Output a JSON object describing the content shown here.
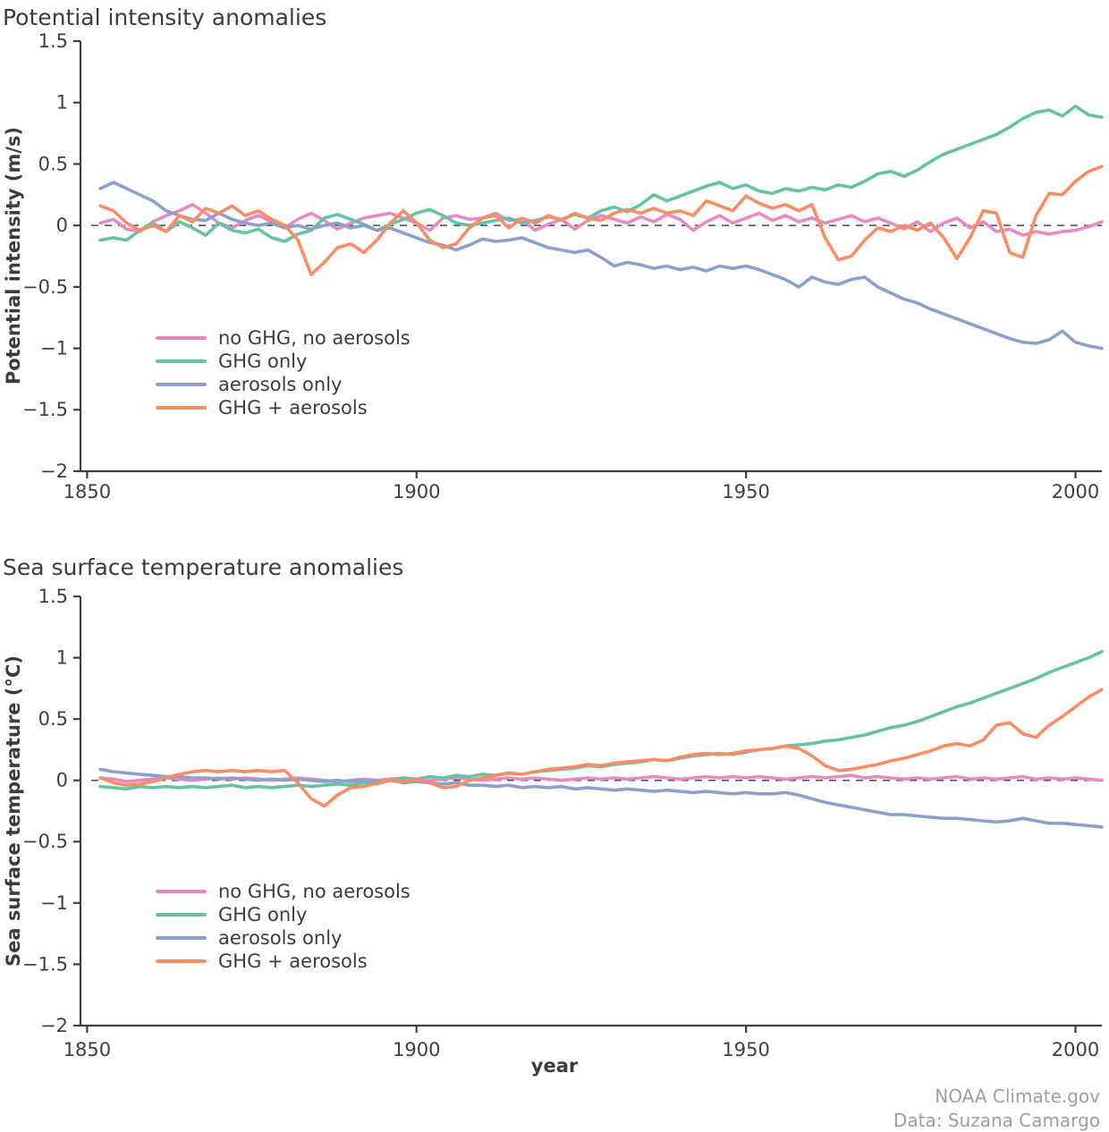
{
  "page": {
    "background": "#ffffff",
    "text_color": "#3c3c3c",
    "axis_color": "#3f3f3f",
    "muted_color": "#9e9e9e"
  },
  "footer": {
    "credit": "NOAA Climate.gov",
    "data_credit": "Data: Suzana Camargo"
  },
  "chart_data": [
    {
      "type": "line",
      "title": "Potential intensity anomalies",
      "ylabel": "Potential intensity (m/s)",
      "xlabel": "",
      "xlim": [
        1849,
        2004
      ],
      "ylim": [
        -2,
        1.5
      ],
      "grid": false,
      "zero_line": true,
      "legend_position": "lower-left",
      "xticks": [
        {
          "v": 1850,
          "label": "1850"
        },
        {
          "v": 1900,
          "label": "1900"
        },
        {
          "v": 1950,
          "label": "1950"
        },
        {
          "v": 2000,
          "label": "2000"
        }
      ],
      "yticks": [
        {
          "v": 1.5,
          "label": "1.5"
        },
        {
          "v": 1,
          "label": "1"
        },
        {
          "v": 0.5,
          "label": "0.5"
        },
        {
          "v": 0,
          "label": "0"
        },
        {
          "v": -0.5,
          "label": "−0.5"
        },
        {
          "v": -1,
          "label": "−1"
        },
        {
          "v": -1.5,
          "label": "−1.5"
        },
        {
          "v": -2,
          "label": "−2"
        }
      ],
      "x": [
        1852,
        1854,
        1856,
        1858,
        1860,
        1862,
        1864,
        1866,
        1868,
        1870,
        1872,
        1874,
        1876,
        1878,
        1880,
        1882,
        1884,
        1886,
        1888,
        1890,
        1892,
        1894,
        1896,
        1898,
        1900,
        1902,
        1904,
        1906,
        1908,
        1910,
        1912,
        1914,
        1916,
        1918,
        1920,
        1922,
        1924,
        1926,
        1928,
        1930,
        1932,
        1934,
        1936,
        1938,
        1940,
        1942,
        1944,
        1946,
        1948,
        1950,
        1952,
        1954,
        1956,
        1958,
        1960,
        1962,
        1964,
        1966,
        1968,
        1970,
        1972,
        1974,
        1976,
        1978,
        1980,
        1982,
        1984,
        1986,
        1988,
        1990,
        1992,
        1994,
        1996,
        1998,
        2000,
        2002,
        2004
      ],
      "series": [
        {
          "name": "no GHG, no aerosols",
          "color": "#e78ac3",
          "values": [
            0.02,
            0.05,
            -0.03,
            -0.05,
            0.03,
            0.08,
            0.12,
            0.17,
            0.1,
            0.02,
            -0.02,
            0.04,
            0.08,
            0.03,
            -0.02,
            0.05,
            0.1,
            0.04,
            -0.03,
            0.02,
            0.06,
            0.08,
            0.1,
            0.06,
            0.02,
            -0.04,
            0.06,
            0.08,
            0.05,
            0.06,
            0.1,
            0.04,
            0.05,
            -0.04,
            0.01,
            0.05,
            -0.03,
            0.04,
            0.08,
            0.05,
            0.02,
            0.07,
            0.03,
            0.09,
            0.05,
            -0.04,
            0.03,
            0.08,
            0.02,
            0.06,
            0.1,
            0.04,
            0.08,
            0.03,
            0.06,
            0.02,
            0.05,
            0.08,
            0.03,
            0.06,
            0.02,
            -0.03,
            0.03,
            -0.05,
            0.02,
            0.06,
            -0.02,
            0.03,
            -0.05,
            -0.03,
            -0.08,
            -0.05,
            -0.07,
            -0.05,
            -0.04,
            -0.01,
            0.03
          ]
        },
        {
          "name": "GHG only",
          "color": "#66c2a5",
          "values": [
            -0.12,
            -0.1,
            -0.12,
            -0.04,
            0.02,
            -0.05,
            0.03,
            -0.02,
            -0.08,
            0.02,
            -0.04,
            -0.06,
            -0.03,
            -0.1,
            -0.13,
            -0.07,
            -0.04,
            0.06,
            0.09,
            0.05,
            0.01,
            -0.04,
            0.01,
            0.05,
            0.1,
            0.13,
            0.08,
            0.02,
            0.0,
            0.02,
            0.04,
            0.06,
            0.02,
            0.04,
            0.07,
            0.05,
            0.09,
            0.06,
            0.12,
            0.15,
            0.11,
            0.17,
            0.25,
            0.2,
            0.24,
            0.28,
            0.32,
            0.35,
            0.3,
            0.33,
            0.28,
            0.26,
            0.3,
            0.28,
            0.31,
            0.29,
            0.33,
            0.31,
            0.36,
            0.42,
            0.44,
            0.4,
            0.45,
            0.52,
            0.58,
            0.62,
            0.66,
            0.7,
            0.74,
            0.8,
            0.87,
            0.92,
            0.94,
            0.89,
            0.97,
            0.9,
            0.88
          ]
        },
        {
          "name": "aerosols only",
          "color": "#8da0cb",
          "values": [
            0.3,
            0.35,
            0.3,
            0.25,
            0.2,
            0.12,
            0.08,
            0.05,
            0.04,
            0.1,
            0.05,
            0.02,
            0.0,
            0.02,
            -0.02,
            0.0,
            -0.03,
            0.0,
            0.02,
            -0.02,
            0.0,
            -0.04,
            -0.02,
            -0.06,
            -0.1,
            -0.14,
            -0.16,
            -0.2,
            -0.16,
            -0.11,
            -0.13,
            -0.12,
            -0.1,
            -0.14,
            -0.18,
            -0.2,
            -0.22,
            -0.2,
            -0.26,
            -0.33,
            -0.3,
            -0.32,
            -0.35,
            -0.33,
            -0.36,
            -0.34,
            -0.37,
            -0.33,
            -0.35,
            -0.33,
            -0.36,
            -0.4,
            -0.44,
            -0.5,
            -0.42,
            -0.46,
            -0.48,
            -0.44,
            -0.42,
            -0.5,
            -0.55,
            -0.6,
            -0.63,
            -0.68,
            -0.72,
            -0.76,
            -0.8,
            -0.84,
            -0.88,
            -0.92,
            -0.95,
            -0.96,
            -0.93,
            -0.86,
            -0.95,
            -0.98,
            -1.0
          ]
        },
        {
          "name": "GHG + aerosols",
          "color": "#fc8d62",
          "values": [
            0.16,
            0.12,
            0.02,
            -0.04,
            0.0,
            -0.05,
            0.08,
            0.03,
            0.14,
            0.1,
            0.16,
            0.08,
            0.12,
            0.05,
            0.0,
            -0.12,
            -0.4,
            -0.3,
            -0.18,
            -0.15,
            -0.22,
            -0.12,
            0.02,
            0.12,
            0.02,
            -0.12,
            -0.18,
            -0.15,
            -0.02,
            0.06,
            0.08,
            -0.02,
            0.06,
            0.02,
            0.08,
            0.04,
            0.1,
            0.06,
            0.04,
            0.1,
            0.13,
            0.1,
            0.14,
            0.1,
            0.12,
            0.08,
            0.2,
            0.16,
            0.12,
            0.24,
            0.18,
            0.14,
            0.17,
            0.12,
            0.17,
            -0.1,
            -0.28,
            -0.25,
            -0.12,
            -0.02,
            -0.05,
            0.0,
            -0.04,
            0.02,
            -0.1,
            -0.27,
            -0.1,
            0.12,
            0.1,
            -0.22,
            -0.26,
            0.08,
            0.26,
            0.25,
            0.36,
            0.44,
            0.48
          ]
        }
      ]
    },
    {
      "type": "line",
      "title": "Sea surface temperature anomalies",
      "ylabel": "Sea surface temperature (°C)",
      "xlabel": "year",
      "xlim": [
        1849,
        2004
      ],
      "ylim": [
        -2,
        1.5
      ],
      "grid": false,
      "zero_line": true,
      "legend_position": "lower-left",
      "xticks": [
        {
          "v": 1850,
          "label": "1850"
        },
        {
          "v": 1900,
          "label": "1900"
        },
        {
          "v": 1950,
          "label": "1950"
        },
        {
          "v": 2000,
          "label": "2000"
        }
      ],
      "yticks": [
        {
          "v": 1.5,
          "label": "1.5"
        },
        {
          "v": 1,
          "label": "1"
        },
        {
          "v": 0.5,
          "label": "0.5"
        },
        {
          "v": 0,
          "label": "0"
        },
        {
          "v": -0.5,
          "label": "−0.5"
        },
        {
          "v": -1,
          "label": "−1"
        },
        {
          "v": -1.5,
          "label": "−1.5"
        },
        {
          "v": -2,
          "label": "−2"
        }
      ],
      "x": [
        1852,
        1854,
        1856,
        1858,
        1860,
        1862,
        1864,
        1866,
        1868,
        1870,
        1872,
        1874,
        1876,
        1878,
        1880,
        1882,
        1884,
        1886,
        1888,
        1890,
        1892,
        1894,
        1896,
        1898,
        1900,
        1902,
        1904,
        1906,
        1908,
        1910,
        1912,
        1914,
        1916,
        1918,
        1920,
        1922,
        1924,
        1926,
        1928,
        1930,
        1932,
        1934,
        1936,
        1938,
        1940,
        1942,
        1944,
        1946,
        1948,
        1950,
        1952,
        1954,
        1956,
        1958,
        1960,
        1962,
        1964,
        1966,
        1968,
        1970,
        1972,
        1974,
        1976,
        1978,
        1980,
        1982,
        1984,
        1986,
        1988,
        1990,
        1992,
        1994,
        1996,
        1998,
        2000,
        2002,
        2004
      ],
      "series": [
        {
          "name": "no GHG, no aerosols",
          "color": "#e78ac3",
          "values": [
            0.02,
            0.01,
            -0.01,
            0.0,
            0.01,
            0.02,
            0.01,
            0.0,
            0.01,
            0.02,
            0.01,
            0.02,
            0.01,
            0.0,
            0.01,
            0.02,
            0.01,
            0.0,
            -0.01,
            0.0,
            0.01,
            0.0,
            0.01,
            0.02,
            0.01,
            0.0,
            0.01,
            0.02,
            0.01,
            0.0,
            0.01,
            0.02,
            0.01,
            0.02,
            0.01,
            0.0,
            0.01,
            0.02,
            0.01,
            0.02,
            0.01,
            0.02,
            0.03,
            0.02,
            0.01,
            0.02,
            0.03,
            0.02,
            0.03,
            0.02,
            0.03,
            0.02,
            0.01,
            0.02,
            0.03,
            0.02,
            0.03,
            0.04,
            0.02,
            0.03,
            0.02,
            0.01,
            0.02,
            0.01,
            0.02,
            0.03,
            0.01,
            0.02,
            0.01,
            0.02,
            0.03,
            0.01,
            0.02,
            0.01,
            0.02,
            0.01,
            0.0
          ]
        },
        {
          "name": "GHG only",
          "color": "#66c2a5",
          "values": [
            -0.05,
            -0.06,
            -0.07,
            -0.05,
            -0.06,
            -0.05,
            -0.06,
            -0.05,
            -0.06,
            -0.05,
            -0.04,
            -0.06,
            -0.05,
            -0.06,
            -0.05,
            -0.04,
            -0.05,
            -0.04,
            -0.03,
            -0.04,
            -0.02,
            -0.03,
            0.0,
            0.02,
            0.01,
            0.03,
            0.02,
            0.04,
            0.03,
            0.05,
            0.04,
            0.06,
            0.05,
            0.07,
            0.08,
            0.09,
            0.1,
            0.12,
            0.11,
            0.13,
            0.14,
            0.15,
            0.17,
            0.16,
            0.18,
            0.2,
            0.21,
            0.22,
            0.21,
            0.23,
            0.25,
            0.26,
            0.28,
            0.29,
            0.3,
            0.32,
            0.33,
            0.35,
            0.37,
            0.4,
            0.43,
            0.45,
            0.48,
            0.52,
            0.56,
            0.6,
            0.63,
            0.67,
            0.71,
            0.75,
            0.79,
            0.83,
            0.88,
            0.92,
            0.96,
            1.0,
            1.05
          ]
        },
        {
          "name": "aerosols only",
          "color": "#8da0cb",
          "values": [
            0.09,
            0.07,
            0.06,
            0.05,
            0.04,
            0.03,
            0.03,
            0.02,
            0.02,
            0.01,
            0.02,
            0.01,
            0.0,
            0.01,
            0.0,
            0.01,
            0.0,
            -0.01,
            0.0,
            -0.01,
            0.0,
            -0.01,
            0.0,
            -0.02,
            -0.01,
            -0.02,
            -0.03,
            -0.02,
            -0.04,
            -0.04,
            -0.05,
            -0.04,
            -0.06,
            -0.05,
            -0.06,
            -0.05,
            -0.07,
            -0.06,
            -0.07,
            -0.08,
            -0.07,
            -0.08,
            -0.09,
            -0.08,
            -0.09,
            -0.1,
            -0.09,
            -0.1,
            -0.11,
            -0.1,
            -0.11,
            -0.11,
            -0.1,
            -0.12,
            -0.15,
            -0.18,
            -0.2,
            -0.22,
            -0.24,
            -0.26,
            -0.28,
            -0.28,
            -0.29,
            -0.3,
            -0.31,
            -0.31,
            -0.32,
            -0.33,
            -0.34,
            -0.33,
            -0.31,
            -0.33,
            -0.35,
            -0.35,
            -0.36,
            -0.37,
            -0.38
          ]
        },
        {
          "name": "GHG + aerosols",
          "color": "#fc8d62",
          "values": [
            0.02,
            -0.02,
            -0.04,
            -0.03,
            -0.01,
            0.02,
            0.05,
            0.07,
            0.08,
            0.07,
            0.08,
            0.07,
            0.08,
            0.07,
            0.08,
            -0.02,
            -0.15,
            -0.21,
            -0.12,
            -0.06,
            -0.05,
            -0.02,
            0.0,
            -0.01,
            0.01,
            -0.02,
            -0.06,
            -0.05,
            0.0,
            0.02,
            0.04,
            0.06,
            0.05,
            0.07,
            0.09,
            0.1,
            0.11,
            0.13,
            0.12,
            0.14,
            0.15,
            0.16,
            0.17,
            0.16,
            0.19,
            0.21,
            0.22,
            0.21,
            0.22,
            0.24,
            0.25,
            0.26,
            0.28,
            0.26,
            0.2,
            0.12,
            0.08,
            0.09,
            0.11,
            0.13,
            0.16,
            0.18,
            0.21,
            0.24,
            0.28,
            0.3,
            0.28,
            0.33,
            0.45,
            0.47,
            0.38,
            0.35,
            0.45,
            0.52,
            0.6,
            0.68,
            0.74
          ]
        }
      ]
    }
  ]
}
